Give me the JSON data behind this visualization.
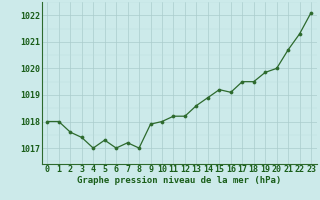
{
  "x": [
    0,
    1,
    2,
    3,
    4,
    5,
    6,
    7,
    8,
    9,
    10,
    11,
    12,
    13,
    14,
    15,
    16,
    17,
    18,
    19,
    20,
    21,
    22,
    23
  ],
  "y": [
    1018.0,
    1018.0,
    1017.6,
    1017.4,
    1017.0,
    1017.3,
    1017.0,
    1017.2,
    1017.0,
    1017.9,
    1018.0,
    1018.2,
    1018.2,
    1018.6,
    1018.9,
    1019.2,
    1019.1,
    1019.5,
    1019.5,
    1019.85,
    1020.0,
    1020.7,
    1021.3,
    1022.1
  ],
  "line_color": "#2d6a2d",
  "marker_color": "#2d6a2d",
  "bg_color": "#cceaea",
  "grid_color_major": "#aacccc",
  "grid_color_minor": "#bbdddd",
  "xlabel": "Graphe pression niveau de la mer (hPa)",
  "xlabel_color": "#1a5e1a",
  "ytick_labels": [
    "1017",
    "1018",
    "1019",
    "1020",
    "1021",
    "1022"
  ],
  "ytick_values": [
    1017,
    1018,
    1019,
    1020,
    1021,
    1022
  ],
  "ylim": [
    1016.4,
    1022.5
  ],
  "xlim": [
    -0.5,
    23.5
  ],
  "xtick_labels": [
    "0",
    "1",
    "2",
    "3",
    "4",
    "5",
    "6",
    "7",
    "8",
    "9",
    "10",
    "11",
    "12",
    "13",
    "14",
    "15",
    "16",
    "17",
    "18",
    "19",
    "20",
    "21",
    "22",
    "23"
  ],
  "tick_color": "#1a5e1a",
  "spine_color": "#2d6a2d",
  "label_fontsize": 6.5,
  "tick_fontsize": 6.0
}
